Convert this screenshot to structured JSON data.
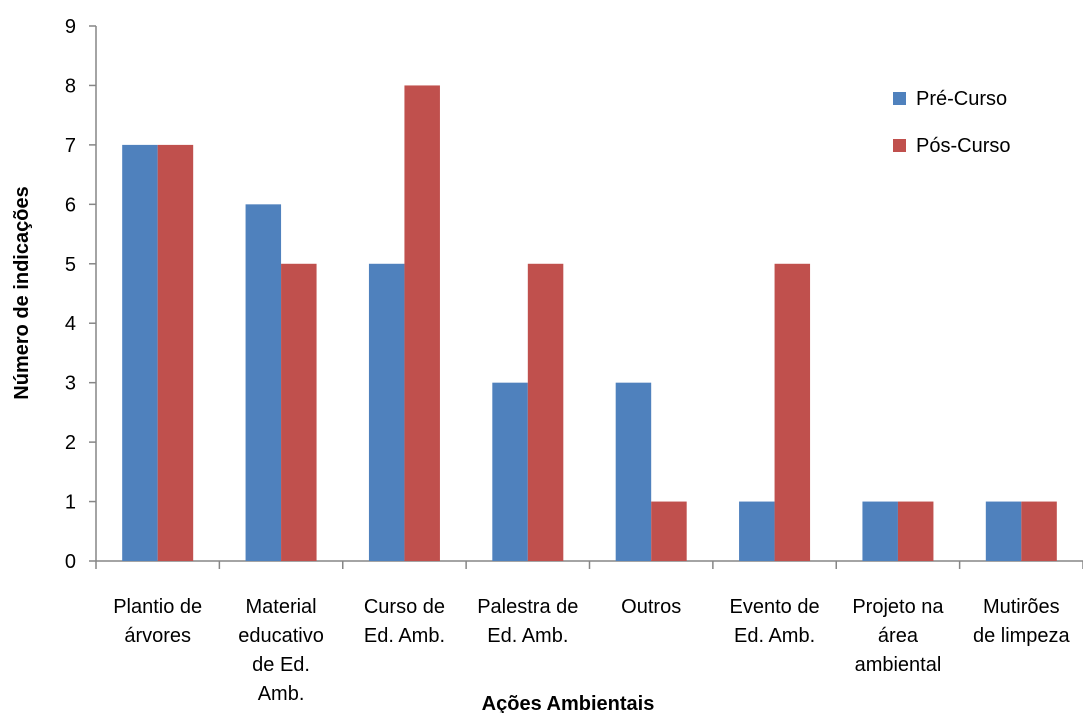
{
  "chart_data": {
    "type": "bar",
    "categories": [
      [
        "Plantio de",
        "árvores"
      ],
      [
        "Material",
        "educativo",
        "de Ed.",
        "Amb."
      ],
      [
        "Curso de",
        "Ed. Amb."
      ],
      [
        "Palestra de",
        "Ed. Amb."
      ],
      [
        "Outros"
      ],
      [
        "Evento de",
        "Ed. Amb."
      ],
      [
        "Projeto na",
        "área",
        "ambiental"
      ],
      [
        "Mutirões",
        "de limpeza"
      ]
    ],
    "series": [
      {
        "name": "Pré-Curso",
        "color": "#4f81bd",
        "values": [
          7,
          6,
          5,
          3,
          3,
          1,
          1,
          1
        ]
      },
      {
        "name": "Pós-Curso",
        "color": "#c0504d",
        "values": [
          7,
          5,
          8,
          5,
          1,
          5,
          1,
          1
        ]
      }
    ],
    "title": "",
    "xlabel": "Ações Ambientais",
    "ylabel": "Número de indicações",
    "ylim": [
      0,
      9
    ],
    "yticks": [
      0,
      1,
      2,
      3,
      4,
      5,
      6,
      7,
      8,
      9
    ],
    "grid": false,
    "legend_position": "top-right"
  }
}
